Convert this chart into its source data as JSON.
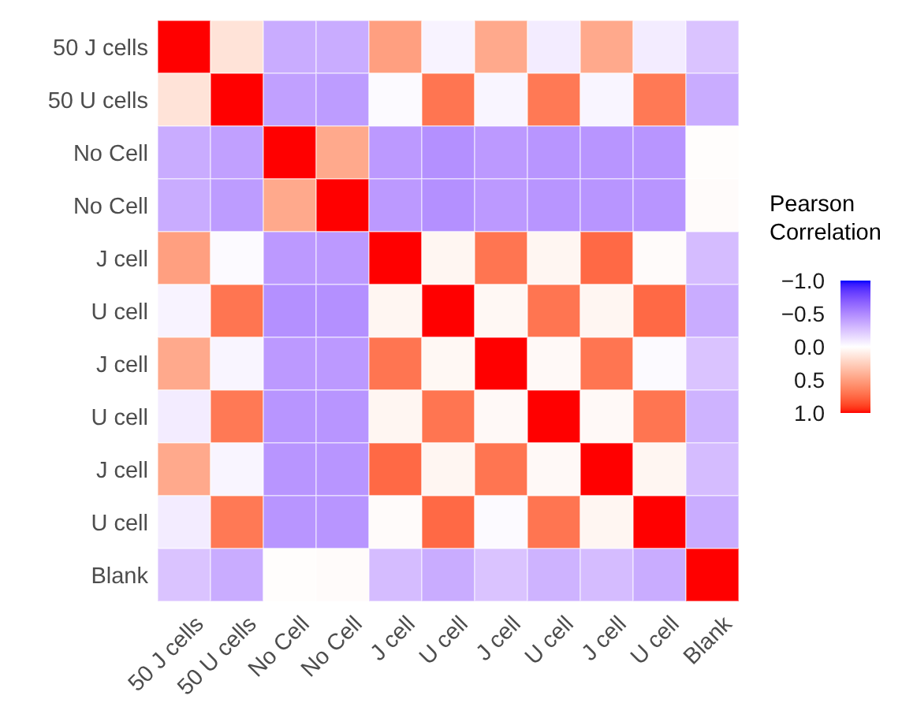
{
  "chart_data": {
    "type": "heatmap",
    "clabel": "Pearson Correlation",
    "categories": [
      "50 J cells",
      "50 U cells",
      "No Cell",
      "No Cell",
      "J cell",
      "U cell",
      "J cell",
      "U cell",
      "J cell",
      "U cell",
      "Blank"
    ],
    "y_categories": [
      "50 J cells",
      "50 U cells",
      "No Cell",
      "No Cell",
      "J cell",
      "U cell",
      "J cell",
      "U cell",
      "J cell",
      "U cell",
      "Blank"
    ],
    "cells": [
      [
        1,
        0.15,
        -0.35,
        -0.35,
        0.5,
        -0.05,
        0.45,
        -0.08,
        0.45,
        -0.08,
        -0.25
      ],
      [
        0.15,
        1,
        -0.4,
        -0.42,
        -0.02,
        0.7,
        -0.04,
        0.68,
        -0.04,
        0.68,
        -0.35
      ],
      [
        -0.35,
        -0.4,
        1,
        0.45,
        -0.43,
        -0.47,
        -0.43,
        -0.45,
        -0.45,
        -0.45,
        0.01
      ],
      [
        -0.35,
        -0.42,
        0.45,
        1,
        -0.43,
        -0.47,
        -0.43,
        -0.45,
        -0.45,
        -0.45,
        0.02
      ],
      [
        0.5,
        -0.02,
        -0.43,
        -0.43,
        1,
        0.05,
        0.7,
        0.05,
        0.75,
        0.02,
        -0.28
      ],
      [
        -0.05,
        0.7,
        -0.47,
        -0.47,
        0.05,
        1,
        0.04,
        0.7,
        0.05,
        0.75,
        -0.35
      ],
      [
        0.45,
        -0.04,
        -0.43,
        -0.43,
        0.7,
        0.04,
        1,
        0.03,
        0.7,
        -0.02,
        -0.25
      ],
      [
        -0.08,
        0.68,
        -0.45,
        -0.45,
        0.05,
        0.7,
        0.03,
        1,
        0.03,
        0.7,
        -0.32
      ],
      [
        0.45,
        -0.04,
        -0.45,
        -0.45,
        0.75,
        0.05,
        0.7,
        0.03,
        1,
        0.05,
        -0.28
      ],
      [
        -0.08,
        0.68,
        -0.45,
        -0.45,
        0.02,
        0.75,
        -0.02,
        0.7,
        0.05,
        1,
        -0.35
      ],
      [
        -0.25,
        -0.35,
        0.01,
        0.02,
        -0.28,
        -0.35,
        -0.25,
        -0.32,
        -0.28,
        -0.35,
        1
      ]
    ],
    "clim": [
      -1,
      1
    ],
    "cticks": [
      {
        "value": -1,
        "label": "−1.0"
      },
      {
        "value": -0.5,
        "label": "−0.5"
      },
      {
        "value": 0,
        "label": "0.0"
      },
      {
        "value": 0.5,
        "label": "0.5"
      },
      {
        "value": 1,
        "label": "1.0"
      }
    ]
  }
}
